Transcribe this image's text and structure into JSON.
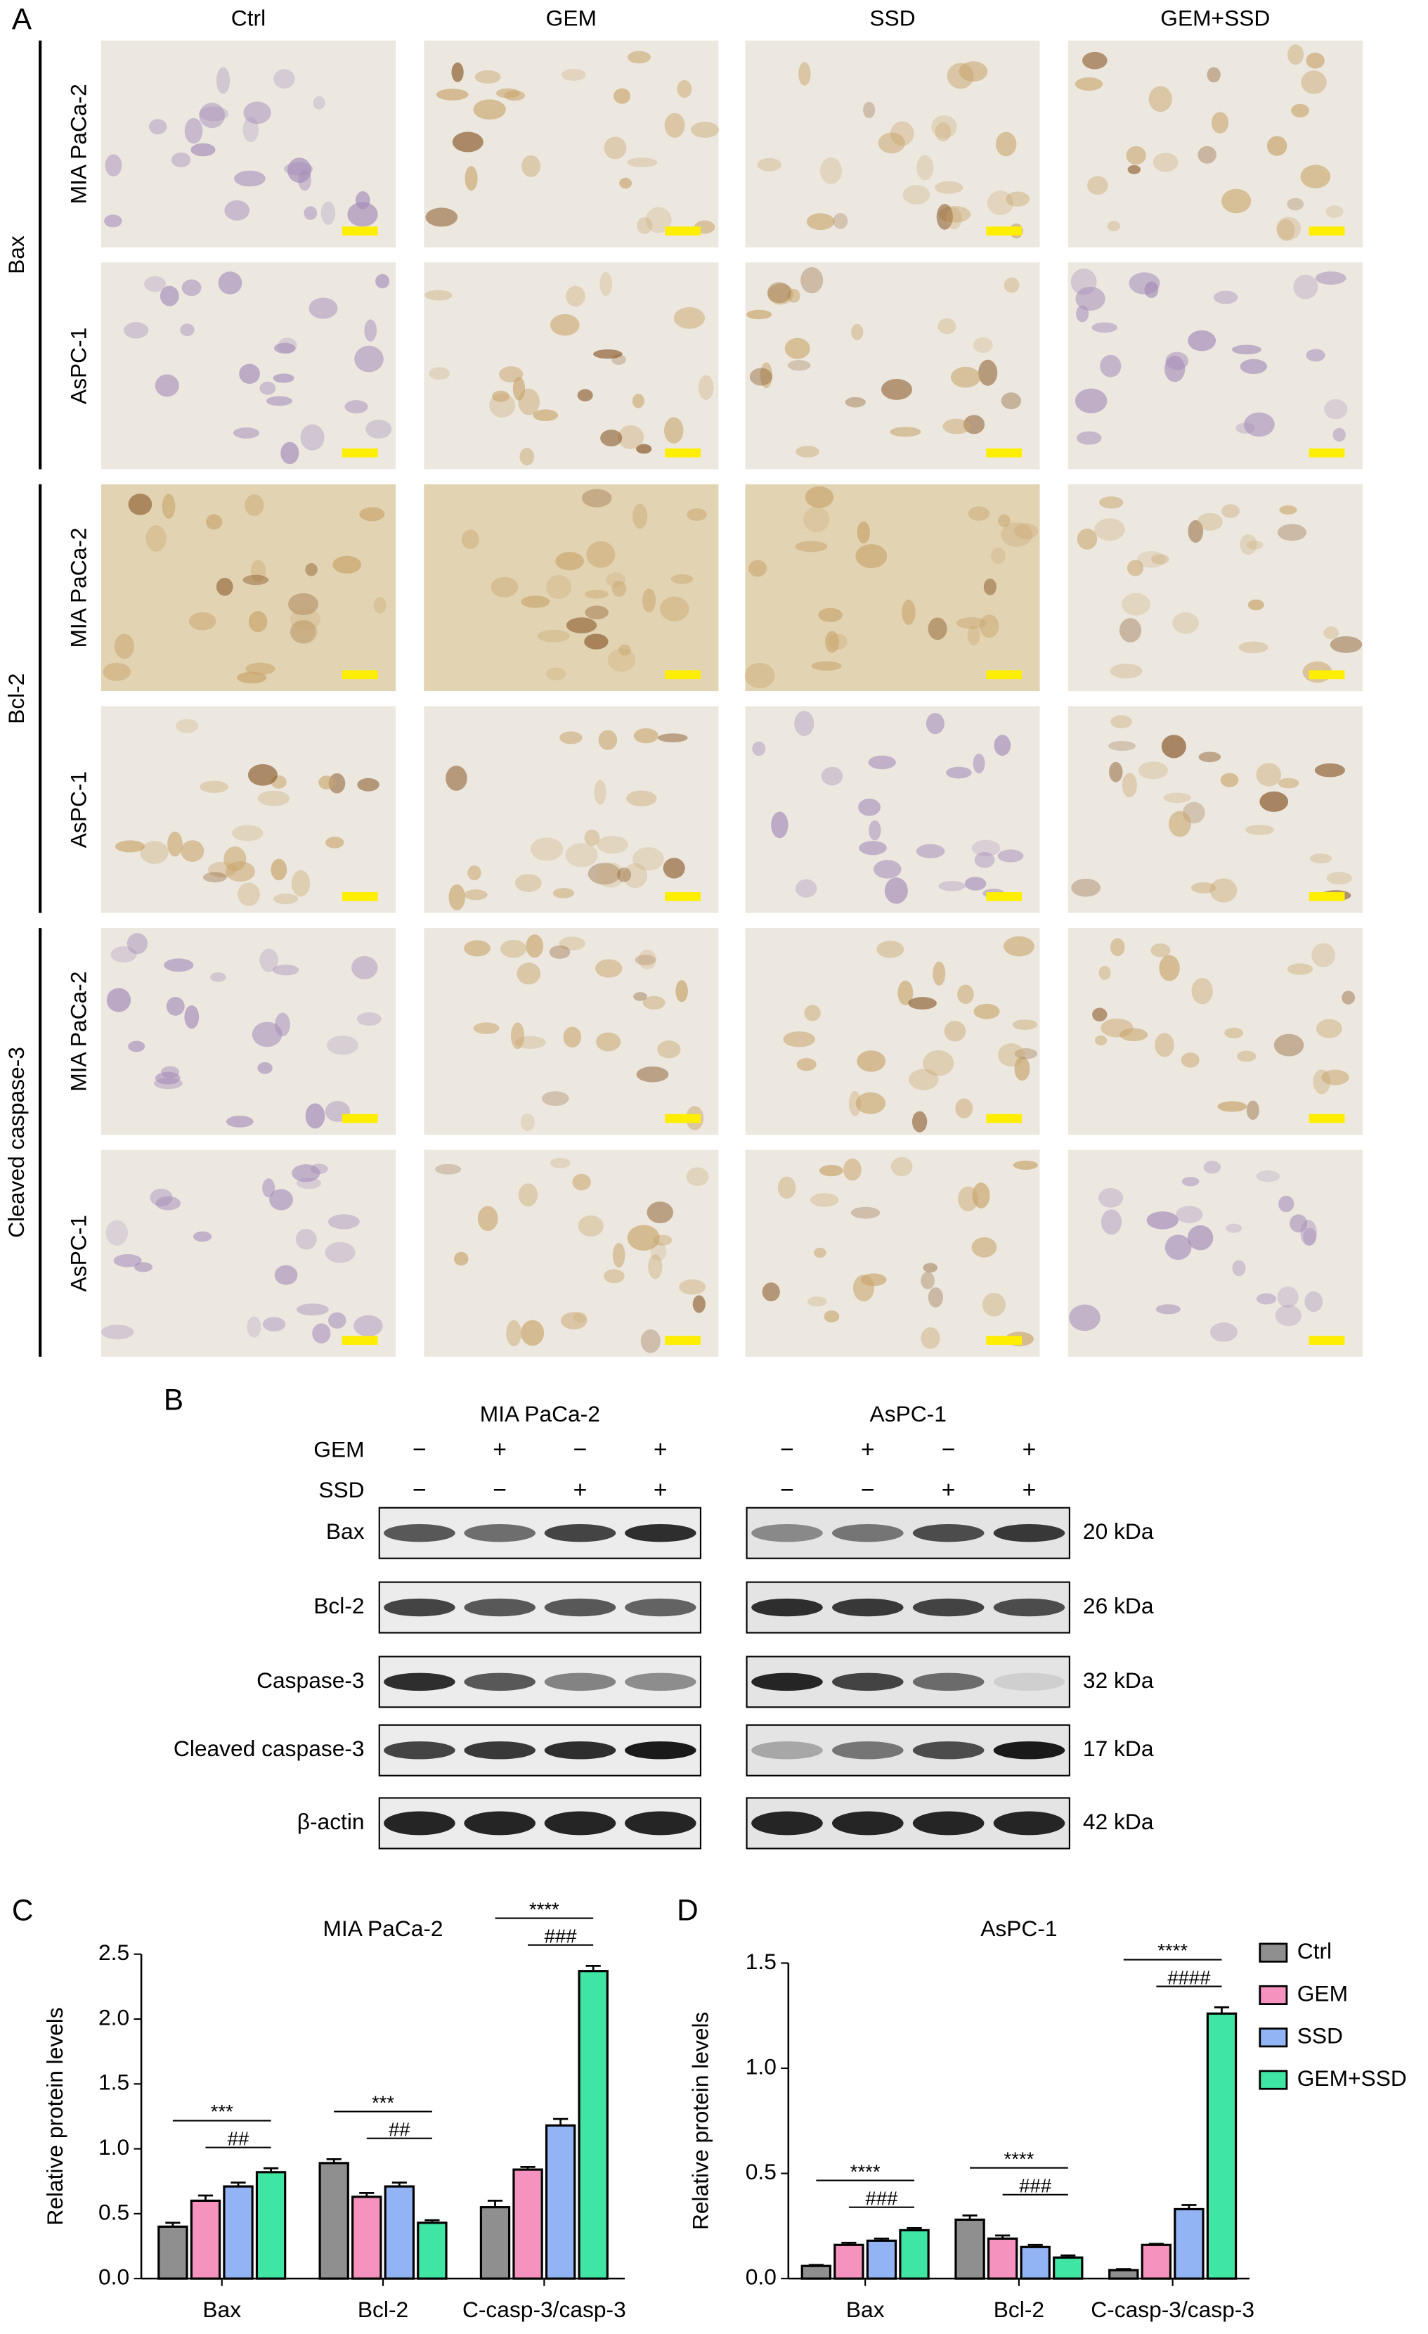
{
  "panel_a": {
    "label": "A",
    "columns": [
      "Ctrl",
      "GEM",
      "SSD",
      "GEM+SSD"
    ],
    "groups": [
      {
        "name": "Bax",
        "rows": [
          "MIA PaCa-2",
          "AsPC-1"
        ]
      },
      {
        "name": "Bcl-2",
        "rows": [
          "MIA PaCa-2",
          "AsPC-1"
        ]
      },
      {
        "name": "Cleaved caspase-3",
        "rows": [
          "MIA PaCa-2",
          "AsPC-1"
        ]
      }
    ]
  },
  "panel_b": {
    "label": "B",
    "cell_lines": [
      "MIA PaCa-2",
      "AsPC-1"
    ],
    "treatments": [
      {
        "name": "GEM",
        "signs": [
          "−",
          "+",
          "−",
          "+"
        ]
      },
      {
        "name": "SSD",
        "signs": [
          "−",
          "−",
          "+",
          "+"
        ]
      }
    ],
    "proteins": [
      {
        "name": "Bax",
        "size": "20 kDa"
      },
      {
        "name": "Bcl-2",
        "size": "26 kDa"
      },
      {
        "name": "Caspase-3",
        "size": "32 kDa"
      },
      {
        "name": "Cleaved caspase-3",
        "size": "17 kDa"
      },
      {
        "name": "β-actin",
        "size": "42 kDa"
      }
    ]
  },
  "chart_data": [
    {
      "type": "bar",
      "label": "C",
      "title": "MIA PaCa-2",
      "y_label": "Relative protein levels",
      "categories": [
        "Bax",
        "Bcl-2",
        "C-casp-3/casp-3"
      ],
      "series": [
        {
          "name": "Ctrl",
          "color": "#8f8f8f",
          "values": [
            0.4,
            0.89,
            0.55
          ],
          "errors": [
            0.03,
            0.03,
            0.05
          ]
        },
        {
          "name": "GEM",
          "color": "#f592bd",
          "values": [
            0.6,
            0.63,
            0.84
          ],
          "errors": [
            0.04,
            0.03,
            0.02
          ]
        },
        {
          "name": "SSD",
          "color": "#92b4f5",
          "values": [
            0.71,
            0.71,
            1.18
          ],
          "errors": [
            0.03,
            0.03,
            0.05
          ]
        },
        {
          "name": "GEM+SSD",
          "color": "#3fe6a3",
          "values": [
            0.82,
            0.43,
            2.37
          ],
          "errors": [
            0.03,
            0.02,
            0.04
          ]
        }
      ],
      "significance": [
        [
          "***",
          "##"
        ],
        [
          "***",
          "##"
        ],
        [
          "****",
          "###"
        ]
      ],
      "ylim": [
        0,
        2.5
      ],
      "yticks": [
        {
          "value": 0,
          "label": "0.0"
        },
        0.5,
        {
          "value": 1,
          "label": "1.0"
        },
        1.5,
        {
          "value": 2,
          "label": "2.0"
        },
        2.5
      ],
      "legend": false
    },
    {
      "type": "bar",
      "label": "D",
      "title": "AsPC-1",
      "y_label": "Relative protein levels",
      "categories": [
        "Bax",
        "Bcl-2",
        "C-casp-3/casp-3"
      ],
      "series": [
        {
          "name": "Ctrl",
          "color": "#8f8f8f",
          "values": [
            0.06,
            0.28,
            0.04
          ],
          "errors": [
            0.005,
            0.02,
            0.005
          ]
        },
        {
          "name": "GEM",
          "color": "#f592bd",
          "values": [
            0.16,
            0.19,
            0.16
          ],
          "errors": [
            0.01,
            0.015,
            0.005
          ]
        },
        {
          "name": "SSD",
          "color": "#92b4f5",
          "values": [
            0.18,
            0.15,
            0.33
          ],
          "errors": [
            0.01,
            0.01,
            0.02
          ]
        },
        {
          "name": "GEM+SSD",
          "color": "#3fe6a3",
          "values": [
            0.23,
            0.1,
            1.26
          ],
          "errors": [
            0.01,
            0.01,
            0.03
          ]
        }
      ],
      "significance": [
        [
          "****",
          "###"
        ],
        [
          "****",
          "###"
        ],
        [
          "****",
          "####"
        ]
      ],
      "ylim": [
        0,
        1.5
      ],
      "yticks": [
        {
          "value": 0,
          "label": "0.0"
        },
        0.5,
        {
          "value": 1,
          "label": "1.0"
        },
        1.5
      ],
      "legend": "right"
    }
  ]
}
